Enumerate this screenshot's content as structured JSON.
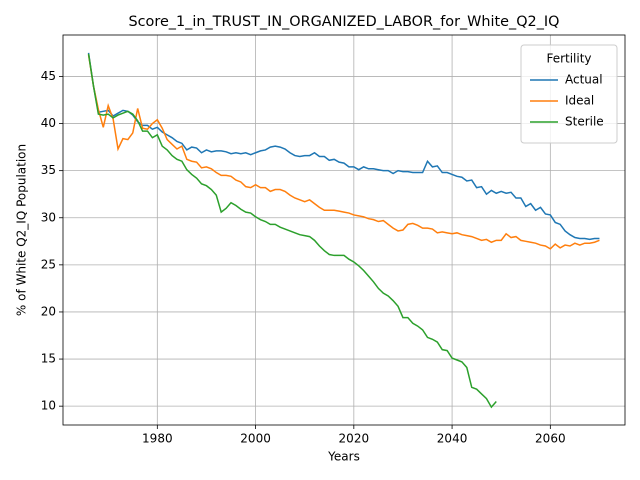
{
  "chart_data": {
    "type": "line",
    "title": "Score_1_in_TRUST_IN_ORGANIZED_LABOR_for_White_Q2_IQ",
    "x_label": "Years",
    "y_label": "% of White Q2_IQ Population",
    "legend_title": "Fertility",
    "legend": "upper right",
    "grid": true,
    "x": [
      1966,
      1967,
      1968,
      1969,
      1970,
      1971,
      1972,
      1973,
      1974,
      1975,
      1976,
      1977,
      1978,
      1979,
      1980,
      1981,
      1982,
      1983,
      1984,
      1985,
      1986,
      1987,
      1988,
      1989,
      1990,
      1991,
      1992,
      1993,
      1994,
      1995,
      1996,
      1997,
      1998,
      1999,
      2000,
      2001,
      2002,
      2003,
      2004,
      2005,
      2006,
      2007,
      2008,
      2009,
      2010,
      2011,
      2012,
      2013,
      2014,
      2015,
      2016,
      2017,
      2018,
      2019,
      2020,
      2021,
      2022,
      2023,
      2024,
      2025,
      2026,
      2027,
      2028,
      2029,
      2030,
      2031,
      2032,
      2033,
      2034,
      2035,
      2036,
      2037,
      2038,
      2039,
      2040,
      2041,
      2042,
      2043,
      2044,
      2045,
      2046,
      2047,
      2048,
      2049,
      2050,
      2051,
      2052,
      2053,
      2054,
      2055,
      2056,
      2057,
      2058,
      2059,
      2060,
      2061,
      2062,
      2063,
      2064,
      2065,
      2066,
      2067,
      2068,
      2069,
      2070
    ],
    "series": [
      {
        "name": "Actual",
        "color": "#1f77b4",
        "values": [
          47.5,
          44,
          41.2,
          41.3,
          41.4,
          40.8,
          41.1,
          41.4,
          41.3,
          40.9,
          40.2,
          39.8,
          39.8,
          39.4,
          39.6,
          39.1,
          38.8,
          38.5,
          38.1,
          37.9,
          37.2,
          37.5,
          37.4,
          36.9,
          37.2,
          37.0,
          37.1,
          37.1,
          37.0,
          36.8,
          36.9,
          36.8,
          36.9,
          36.7,
          36.9,
          37.1,
          37.2,
          37.5,
          37.6,
          37.5,
          37.3,
          36.9,
          36.6,
          36.5,
          36.6,
          36.6,
          36.9,
          36.5,
          36.5,
          36.1,
          36.2,
          35.9,
          35.8,
          35.4,
          35.4,
          35.1,
          35.4,
          35.2,
          35.2,
          35.1,
          35.0,
          35.0,
          34.7,
          35.0,
          34.9,
          34.9,
          34.8,
          34.8,
          34.8,
          36.0,
          35.4,
          35.5,
          34.8,
          34.8,
          34.6,
          34.4,
          34.3,
          33.9,
          34.0,
          33.2,
          33.3,
          32.5,
          32.9,
          32.6,
          32.8,
          32.6,
          32.7,
          32.1,
          32.1,
          31.2,
          31.5,
          30.8,
          31.1,
          30.4,
          30.3,
          29.5,
          29.3,
          28.6,
          28.2,
          27.9,
          27.8,
          27.8,
          27.7,
          27.8,
          27.8
        ]
      },
      {
        "name": "Ideal",
        "color": "#ff7f0e",
        "values": [
          47.3,
          44,
          41.5,
          39.6,
          41.9,
          40.5,
          37.3,
          38.4,
          38.3,
          39.0,
          41.6,
          39.5,
          39.4,
          40.0,
          40.4,
          39.5,
          38.3,
          37.8,
          37.3,
          37.6,
          36.2,
          36.0,
          35.9,
          35.3,
          35.4,
          35.2,
          34.8,
          34.5,
          34.5,
          34.4,
          34.0,
          33.8,
          33.3,
          33.2,
          33.5,
          33.2,
          33.2,
          32.8,
          33.0,
          33.0,
          32.8,
          32.4,
          32.1,
          31.9,
          31.7,
          31.9,
          31.5,
          31.1,
          30.8,
          30.8,
          30.8,
          30.7,
          30.6,
          30.5,
          30.3,
          30.2,
          30.1,
          29.9,
          29.8,
          29.6,
          29.7,
          29.3,
          28.9,
          28.6,
          28.7,
          29.3,
          29.4,
          29.2,
          28.9,
          28.9,
          28.8,
          28.4,
          28.5,
          28.4,
          28.3,
          28.4,
          28.2,
          28.1,
          28.0,
          27.8,
          27.6,
          27.7,
          27.4,
          27.6,
          27.6,
          28.3,
          27.9,
          28.0,
          27.6,
          27.5,
          27.4,
          27.3,
          27.1,
          27.0,
          26.7,
          27.2,
          26.8,
          27.1,
          27.0,
          27.3,
          27.1,
          27.3,
          27.3,
          27.4,
          27.6
        ]
      },
      {
        "name": "Sterile",
        "color": "#2ca02c",
        "values": [
          47.4,
          44,
          41.0,
          40.9,
          41.0,
          40.6,
          40.9,
          41.1,
          41.3,
          41.0,
          40.3,
          39.2,
          39.2,
          38.5,
          38.8,
          37.6,
          37.2,
          36.6,
          36.2,
          36.0,
          35.1,
          34.6,
          34.2,
          33.6,
          33.4,
          33.0,
          32.4,
          30.6,
          31.0,
          31.6,
          31.3,
          30.9,
          30.6,
          30.5,
          30.1,
          29.8,
          29.6,
          29.3,
          29.3,
          29.0,
          28.8,
          28.6,
          28.4,
          28.2,
          28.1,
          28.0,
          27.6,
          27.0,
          26.5,
          26.1,
          26.0,
          26.0,
          26.0,
          25.6,
          25.3,
          24.9,
          24.4,
          23.8,
          23.2,
          22.5,
          22.0,
          21.7,
          21.2,
          20.6,
          19.4,
          19.4,
          18.8,
          18.5,
          18.1,
          17.3,
          17.1,
          16.8,
          16.0,
          15.9,
          15.1,
          14.9,
          14.7,
          14.1,
          12.0,
          11.8,
          11.3,
          10.8,
          9.9,
          10.5,
          null,
          null,
          null,
          null,
          null,
          null,
          null,
          null,
          null,
          null,
          null,
          null,
          null,
          null,
          null,
          null,
          null,
          null,
          null,
          null,
          null
        ]
      }
    ],
    "xlim": [
      1960.8,
      2075.2
    ],
    "ylim": [
      8.0,
      49.4
    ],
    "xticks": [
      1980,
      2000,
      2020,
      2040,
      2060
    ],
    "yticks": [
      10,
      15,
      20,
      25,
      30,
      35,
      40,
      45
    ]
  }
}
